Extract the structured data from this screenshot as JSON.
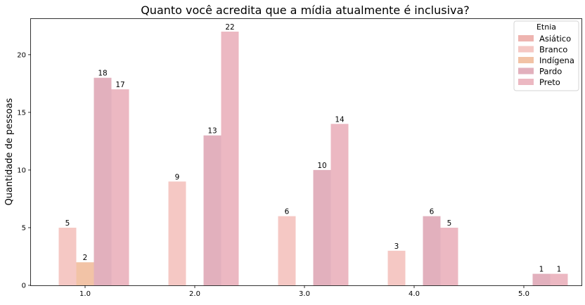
{
  "chart_data": {
    "type": "bar",
    "title": "Quanto você acredita que a mídia atualmente é inclusiva?",
    "xlabel": "",
    "ylabel": "Quantidade de pessoas",
    "categories": [
      "1.0",
      "2.0",
      "3.0",
      "4.0",
      "5.0"
    ],
    "ylim": [
      0,
      23.1
    ],
    "yticks": [
      0,
      5,
      10,
      15,
      20
    ],
    "grid": false,
    "legend": {
      "title": "Etnia",
      "placement": "top-right"
    },
    "series": [
      {
        "name": "Asiático",
        "color": "#eeb4b0",
        "values": [
          null,
          null,
          null,
          null,
          null
        ]
      },
      {
        "name": "Branco",
        "color": "#f5c8c4",
        "values": [
          5,
          9,
          6,
          3,
          null
        ]
      },
      {
        "name": "Indígena",
        "color": "#f2c3a6",
        "values": [
          2,
          null,
          null,
          null,
          null
        ]
      },
      {
        "name": "Pardo",
        "color": "#e2b0bd",
        "values": [
          18,
          13,
          10,
          6,
          1
        ]
      },
      {
        "name": "Preto",
        "color": "#ecb8c2",
        "values": [
          17,
          22,
          14,
          5,
          1
        ]
      }
    ]
  }
}
